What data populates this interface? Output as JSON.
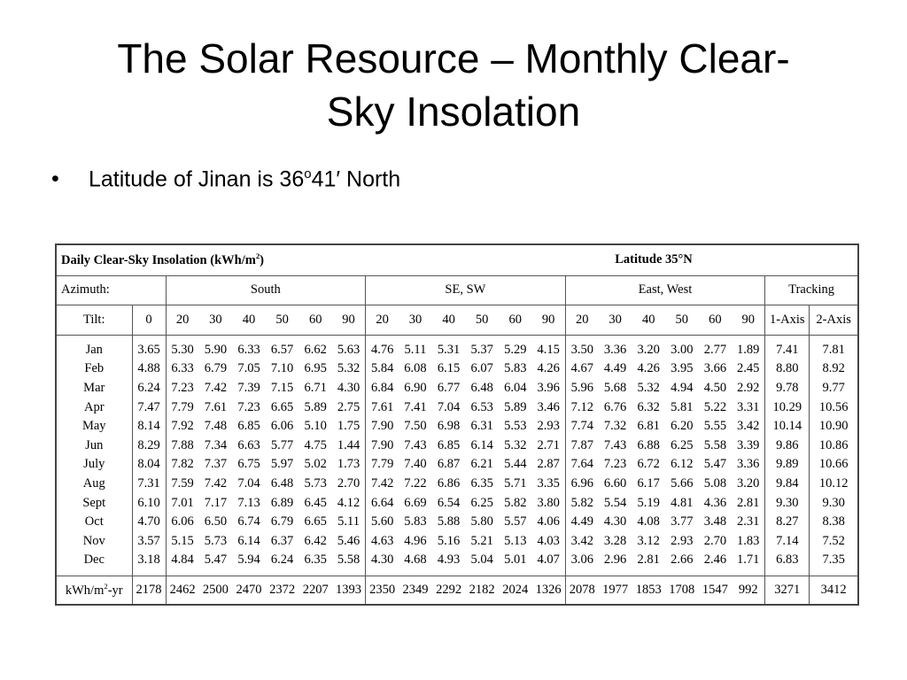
{
  "title": "The Solar Resource – Monthly Clear-Sky Insolation",
  "bullet": {
    "text": "Latitude of Jinan is 36",
    "sup": "o",
    "after": "41′ North"
  },
  "table": {
    "caption": {
      "text": "Daily Clear-Sky Insolation (kWh/m",
      "sup": "2",
      "after": ")"
    },
    "latitude": "Latitude 35°N",
    "azimuth_label": "Azimuth:",
    "groups": [
      "South",
      "SE, SW",
      "East, West",
      "Tracking"
    ],
    "tilt_label": "Tilt:",
    "tilts": [
      "0",
      "20",
      "30",
      "40",
      "50",
      "60",
      "90",
      "20",
      "30",
      "40",
      "50",
      "60",
      "90",
      "20",
      "30",
      "40",
      "50",
      "60",
      "90",
      "1-Axis",
      "2-Axis"
    ],
    "rows": [
      {
        "month": "Jan",
        "values": [
          "3.65",
          "5.30",
          "5.90",
          "6.33",
          "6.57",
          "6.62",
          "5.63",
          "4.76",
          "5.11",
          "5.31",
          "5.37",
          "5.29",
          "4.15",
          "3.50",
          "3.36",
          "3.20",
          "3.00",
          "2.77",
          "1.89",
          "7.41",
          "7.81"
        ]
      },
      {
        "month": "Feb",
        "values": [
          "4.88",
          "6.33",
          "6.79",
          "7.05",
          "7.10",
          "6.95",
          "5.32",
          "5.84",
          "6.08",
          "6.15",
          "6.07",
          "5.83",
          "4.26",
          "4.67",
          "4.49",
          "4.26",
          "3.95",
          "3.66",
          "2.45",
          "8.80",
          "8.92"
        ]
      },
      {
        "month": "Mar",
        "values": [
          "6.24",
          "7.23",
          "7.42",
          "7.39",
          "7.15",
          "6.71",
          "4.30",
          "6.84",
          "6.90",
          "6.77",
          "6.48",
          "6.04",
          "3.96",
          "5.96",
          "5.68",
          "5.32",
          "4.94",
          "4.50",
          "2.92",
          "9.78",
          "9.77"
        ]
      },
      {
        "month": "Apr",
        "values": [
          "7.47",
          "7.79",
          "7.61",
          "7.23",
          "6.65",
          "5.89",
          "2.75",
          "7.61",
          "7.41",
          "7.04",
          "6.53",
          "5.89",
          "3.46",
          "7.12",
          "6.76",
          "6.32",
          "5.81",
          "5.22",
          "3.31",
          "10.29",
          "10.56"
        ]
      },
      {
        "month": "May",
        "values": [
          "8.14",
          "7.92",
          "7.48",
          "6.85",
          "6.06",
          "5.10",
          "1.75",
          "7.90",
          "7.50",
          "6.98",
          "6.31",
          "5.53",
          "2.93",
          "7.74",
          "7.32",
          "6.81",
          "6.20",
          "5.55",
          "3.42",
          "10.14",
          "10.90"
        ]
      },
      {
        "month": "Jun",
        "values": [
          "8.29",
          "7.88",
          "7.34",
          "6.63",
          "5.77",
          "4.75",
          "1.44",
          "7.90",
          "7.43",
          "6.85",
          "6.14",
          "5.32",
          "2.71",
          "7.87",
          "7.43",
          "6.88",
          "6.25",
          "5.58",
          "3.39",
          "9.86",
          "10.86"
        ]
      },
      {
        "month": "July",
        "values": [
          "8.04",
          "7.82",
          "7.37",
          "6.75",
          "5.97",
          "5.02",
          "1.73",
          "7.79",
          "7.40",
          "6.87",
          "6.21",
          "5.44",
          "2.87",
          "7.64",
          "7.23",
          "6.72",
          "6.12",
          "5.47",
          "3.36",
          "9.89",
          "10.66"
        ]
      },
      {
        "month": "Aug",
        "values": [
          "7.31",
          "7.59",
          "7.42",
          "7.04",
          "6.48",
          "5.73",
          "2.70",
          "7.42",
          "7.22",
          "6.86",
          "6.35",
          "5.71",
          "3.35",
          "6.96",
          "6.60",
          "6.17",
          "5.66",
          "5.08",
          "3.20",
          "9.84",
          "10.12"
        ]
      },
      {
        "month": "Sept",
        "values": [
          "6.10",
          "7.01",
          "7.17",
          "7.13",
          "6.89",
          "6.45",
          "4.12",
          "6.64",
          "6.69",
          "6.54",
          "6.25",
          "5.82",
          "3.80",
          "5.82",
          "5.54",
          "5.19",
          "4.81",
          "4.36",
          "2.81",
          "9.30",
          "9.30"
        ]
      },
      {
        "month": "Oct",
        "values": [
          "4.70",
          "6.06",
          "6.50",
          "6.74",
          "6.79",
          "6.65",
          "5.11",
          "5.60",
          "5.83",
          "5.88",
          "5.80",
          "5.57",
          "4.06",
          "4.49",
          "4.30",
          "4.08",
          "3.77",
          "3.48",
          "2.31",
          "8.27",
          "8.38"
        ]
      },
      {
        "month": "Nov",
        "values": [
          "3.57",
          "5.15",
          "5.73",
          "6.14",
          "6.37",
          "6.42",
          "5.46",
          "4.63",
          "4.96",
          "5.16",
          "5.21",
          "5.13",
          "4.03",
          "3.42",
          "3.28",
          "3.12",
          "2.93",
          "2.70",
          "1.83",
          "7.14",
          "7.52"
        ]
      },
      {
        "month": "Dec",
        "values": [
          "3.18",
          "4.84",
          "5.47",
          "5.94",
          "6.24",
          "6.35",
          "5.58",
          "4.30",
          "4.68",
          "4.93",
          "5.04",
          "5.01",
          "4.07",
          "3.06",
          "2.96",
          "2.81",
          "2.66",
          "2.46",
          "1.71",
          "6.83",
          "7.35"
        ]
      }
    ],
    "total": {
      "label": {
        "text": "kWh/m",
        "sup": "2",
        "after": "-yr"
      },
      "values": [
        "2178",
        "2462",
        "2500",
        "2470",
        "2372",
        "2207",
        "1393",
        "2350",
        "2349",
        "2292",
        "2182",
        "2024",
        "1326",
        "2078",
        "1977",
        "1853",
        "1708",
        "1547",
        "992",
        "3271",
        "3412"
      ]
    }
  }
}
